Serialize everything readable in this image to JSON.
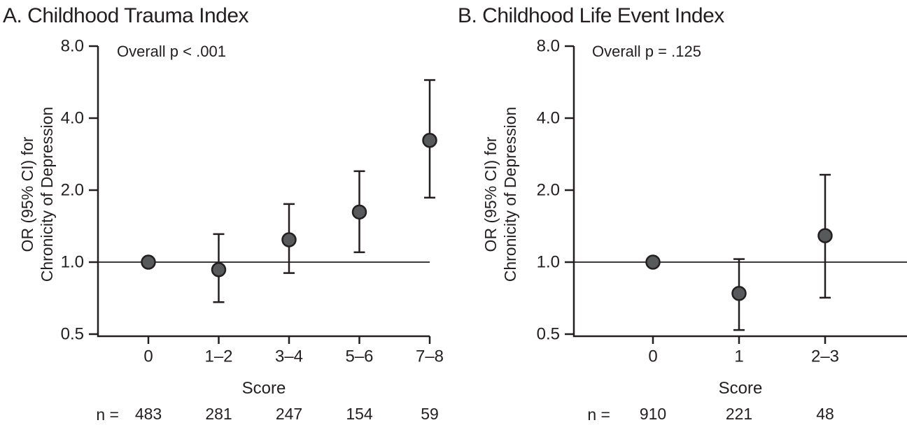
{
  "colors": {
    "background": "#ffffff",
    "text": "#231f20",
    "axis": "#231f20",
    "marker_fill": "#58595b",
    "marker_stroke": "#231f20"
  },
  "chart_data": [
    {
      "type": "scatter",
      "title": "A. Childhood Trauma Index",
      "annotation": "Overall p < .001",
      "ylabel_lines": [
        "OR (95% CI) for",
        "Chronicity of Depression"
      ],
      "xlabel": "Score",
      "n_label": "n =",
      "yscale": "log",
      "ylim": [
        0.5,
        8.0
      ],
      "ytick_labels": [
        "8.0",
        "4.0",
        "2.0",
        "1.0",
        "0.5"
      ],
      "yticks": [
        8.0,
        4.0,
        2.0,
        1.0,
        0.5
      ],
      "reference_line": 1.0,
      "grid": false,
      "legend": null,
      "categories": [
        "0",
        "1–2",
        "3–4",
        "5–6",
        "7–8"
      ],
      "n_values": [
        "483",
        "281",
        "247",
        "154",
        "59"
      ],
      "points": [
        {
          "category": "0",
          "or": 1.0,
          "ci_low": null,
          "ci_high": null
        },
        {
          "category": "1–2",
          "or": 0.93,
          "ci_low": 0.68,
          "ci_high": 1.31
        },
        {
          "category": "3–4",
          "or": 1.24,
          "ci_low": 0.9,
          "ci_high": 1.75
        },
        {
          "category": "5–6",
          "or": 1.62,
          "ci_low": 1.1,
          "ci_high": 2.4
        },
        {
          "category": "7–8",
          "or": 3.23,
          "ci_low": 1.86,
          "ci_high": 5.77
        }
      ]
    },
    {
      "type": "scatter",
      "title": "B. Childhood Life Event Index",
      "annotation": "Overall p = .125",
      "ylabel_lines": [
        "OR (95% CI) for",
        "Chronicity of Depression"
      ],
      "xlabel": "Score",
      "n_label": "n =",
      "yscale": "log",
      "ylim": [
        0.5,
        8.0
      ],
      "ytick_labels": [
        "8.0",
        "4.0",
        "2.0",
        "1.0",
        "0.5"
      ],
      "yticks": [
        8.0,
        4.0,
        2.0,
        1.0,
        0.5
      ],
      "reference_line": 1.0,
      "grid": false,
      "legend": null,
      "categories": [
        "0",
        "1",
        "2–3"
      ],
      "n_values": [
        "910",
        "221",
        "48"
      ],
      "points": [
        {
          "category": "0",
          "or": 1.0,
          "ci_low": null,
          "ci_high": null
        },
        {
          "category": "1",
          "or": 0.74,
          "ci_low": 0.52,
          "ci_high": 1.03
        },
        {
          "category": "2–3",
          "or": 1.29,
          "ci_low": 0.71,
          "ci_high": 2.32
        }
      ]
    }
  ]
}
